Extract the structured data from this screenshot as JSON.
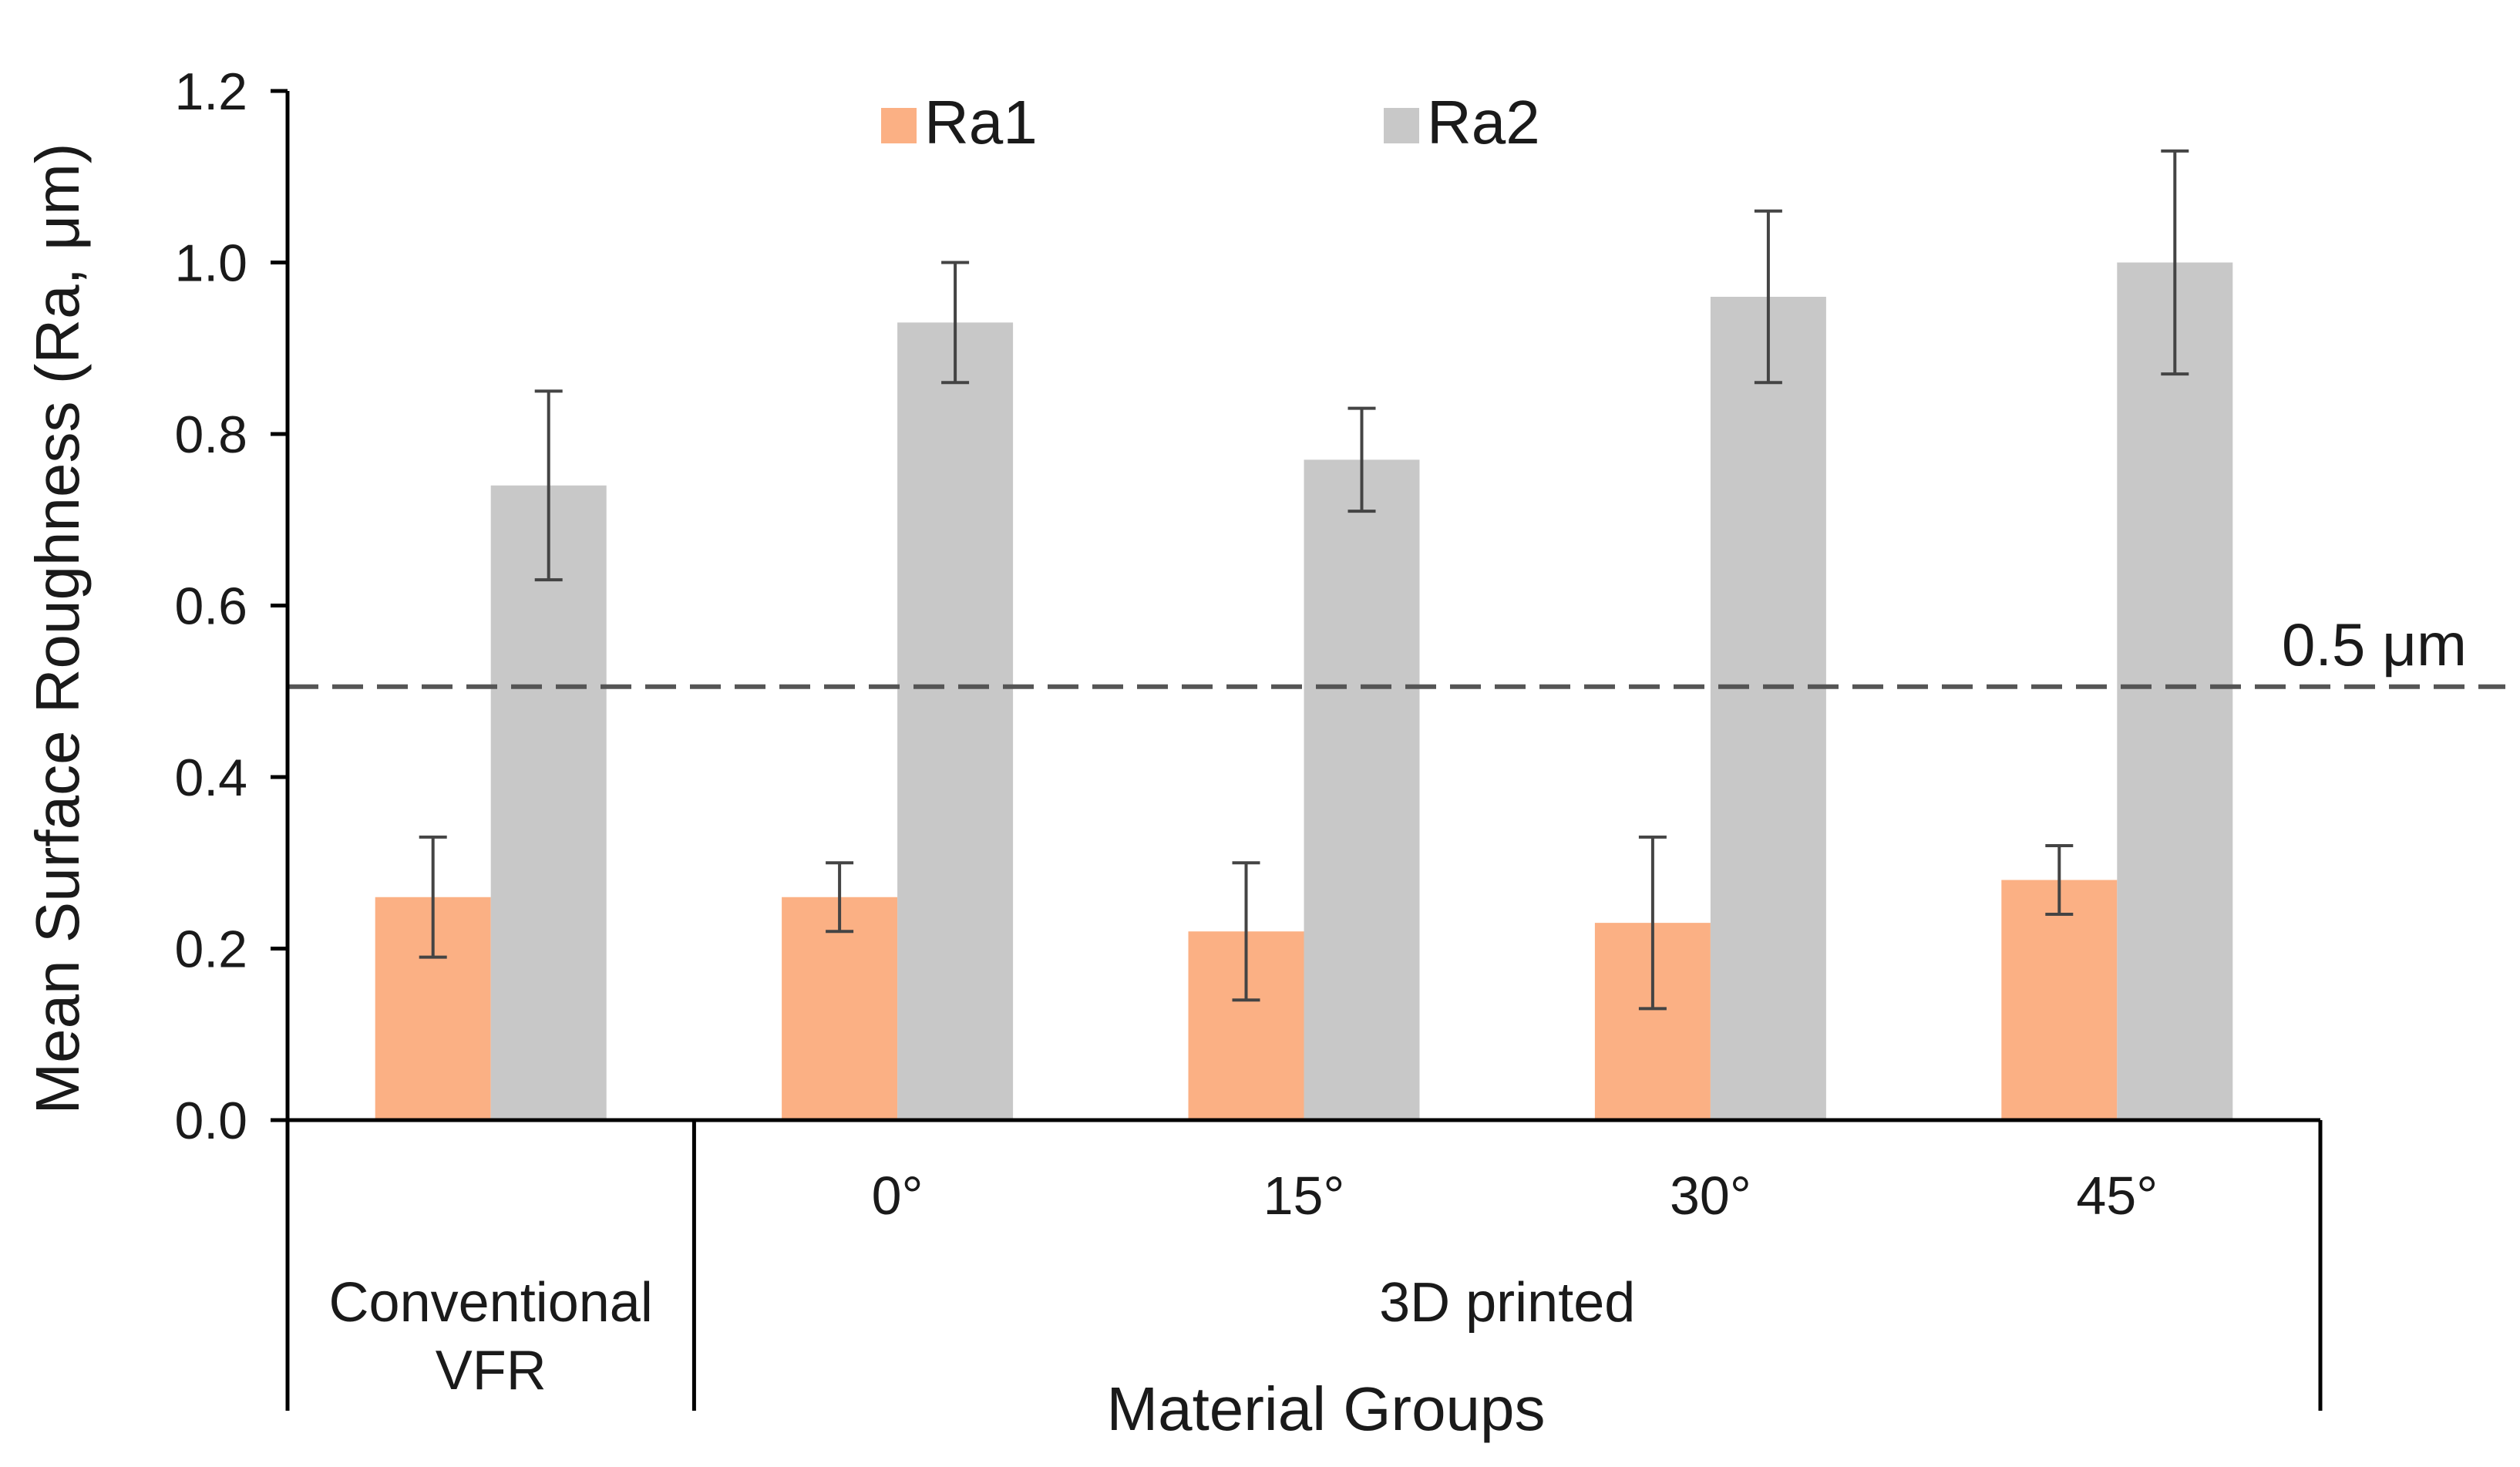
{
  "chart_data": {
    "type": "bar",
    "title": "",
    "xlabel": "Material Groups",
    "ylabel": "Mean Surface Roughness (Ra, μm)",
    "ylim": [
      0,
      1.2
    ],
    "yticks": [
      "0.0",
      "0.2",
      "0.4",
      "0.6",
      "0.8",
      "1.0",
      "1.2"
    ],
    "categories": [
      "",
      "0°",
      "15°",
      "30°",
      "45°"
    ],
    "groups": [
      {
        "label_lines": [
          "Conventional",
          "VFR"
        ]
      },
      {
        "label_lines": [
          "3D printed"
        ]
      }
    ],
    "series": [
      {
        "name": "Ra1",
        "color": "#fbb084",
        "values": [
          0.26,
          0.26,
          0.22,
          0.23,
          0.28
        ],
        "err": [
          0.07,
          0.04,
          0.08,
          0.1,
          0.04
        ]
      },
      {
        "name": "Ra2",
        "color": "#c8c8c8",
        "values": [
          0.74,
          0.93,
          0.77,
          0.96,
          1.0
        ],
        "err": [
          0.11,
          0.07,
          0.06,
          0.1,
          0.13
        ]
      }
    ],
    "reference_line": {
      "value": 0.5,
      "label": "0.5 μm",
      "color": "#555555",
      "style": "dashed"
    },
    "legend_position": "top",
    "grid": false
  }
}
